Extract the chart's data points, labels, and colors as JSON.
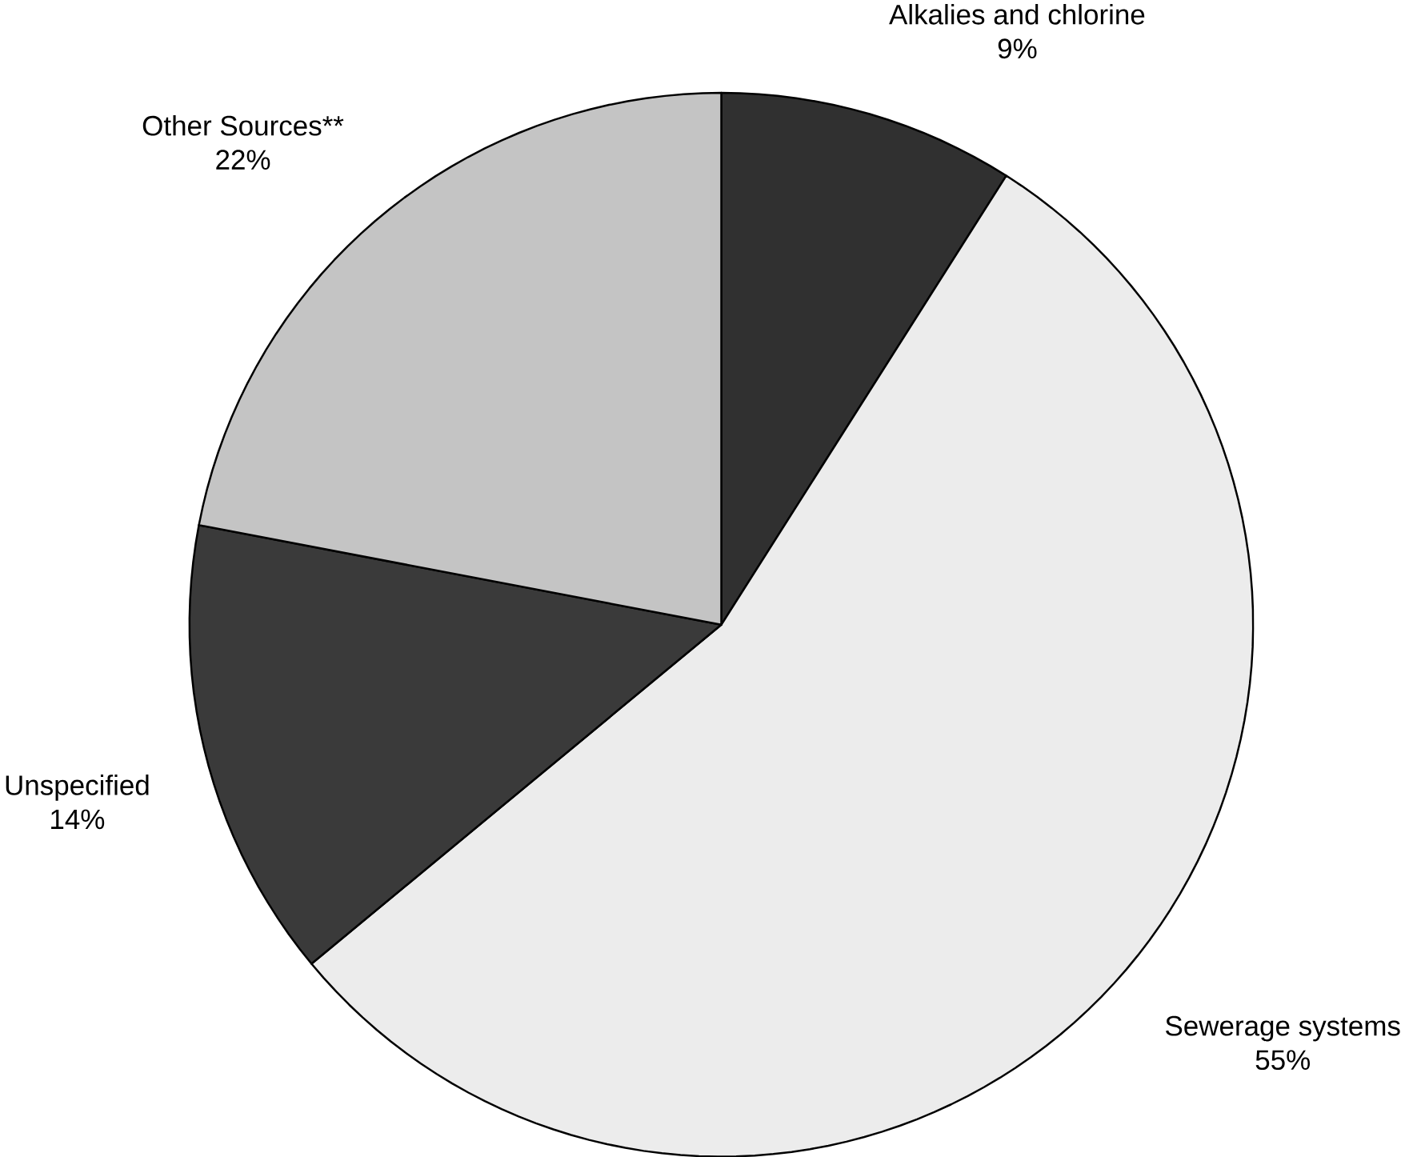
{
  "chart_data": {
    "type": "pie",
    "categories": [
      "Alkalies and chlorine",
      "Sewerage systems",
      "Unspecified",
      "Other Sources**"
    ],
    "values": [
      9,
      55,
      14,
      22
    ],
    "value_labels": [
      "9%",
      "55%",
      "14%",
      "22%"
    ],
    "colors": [
      "#303030",
      "#ececec",
      "#3a3a3a",
      "#c4c4c4"
    ]
  }
}
